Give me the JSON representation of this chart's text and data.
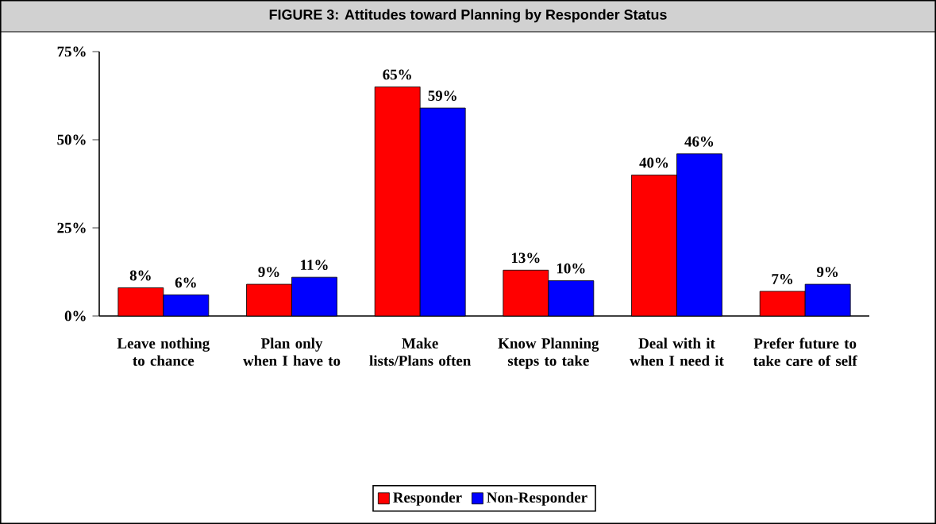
{
  "chart_data": {
    "type": "bar",
    "title": "FIGURE 3:  Attitudes toward Planning by Responder Status",
    "categories": [
      "Leave nothing to chance",
      "Plan only when I have to",
      "Make lists/Plans often",
      "Know Planning steps to take",
      "Deal with it when I need it",
      "Prefer future to take care of self"
    ],
    "series": [
      {
        "name": "Responder",
        "color": "#ff0000",
        "values": [
          8,
          9,
          65,
          13,
          40,
          7
        ],
        "value_labels": [
          "8%",
          "9%",
          "65%",
          "13%",
          "40%",
          "7%"
        ]
      },
      {
        "name": "Non-Responder",
        "color": "#0000ff",
        "values": [
          6,
          11,
          59,
          10,
          46,
          9
        ],
        "value_labels": [
          "6%",
          "11%",
          "59%",
          "10%",
          "46%",
          "9%"
        ]
      }
    ],
    "ylim": [
      0,
      75
    ],
    "yticks": [
      {
        "value": 0,
        "label": "0%"
      },
      {
        "value": 25,
        "label": "25%"
      },
      {
        "value": 50,
        "label": "50%"
      },
      {
        "value": 75,
        "label": "75%"
      }
    ],
    "grid": false,
    "legend": "bottom"
  }
}
